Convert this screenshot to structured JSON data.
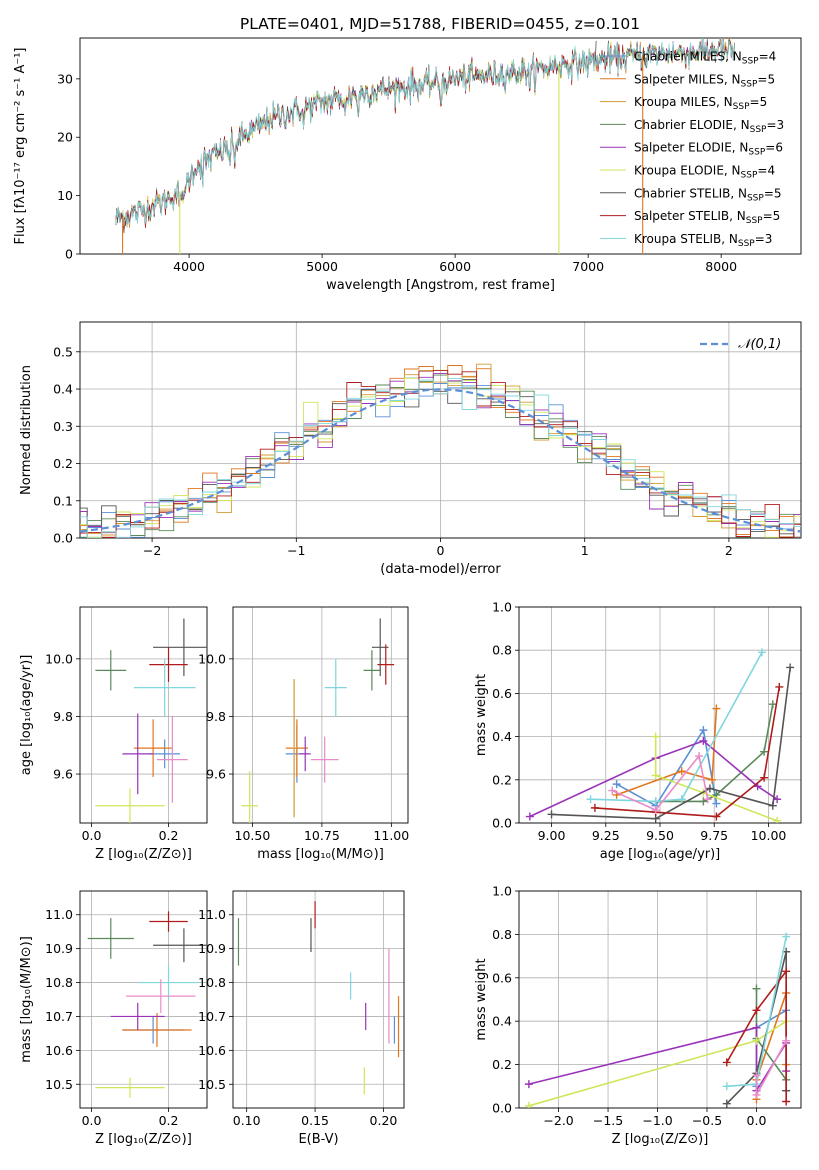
{
  "title": "PLATE=0401, MJD=51788, FIBERID=0455, z=0.101",
  "colors": [
    "#5b8fd6",
    "#e2761f",
    "#d39a36",
    "#5a8a5a",
    "#9a33b8",
    "#cfe65a",
    "#555555",
    "#b01c1c",
    "#7fd6dc",
    "#e88bc8"
  ],
  "chart_data": [
    {
      "id": "spectrum",
      "type": "line",
      "xlabel": "wavelength [Angstrom, rest frame]",
      "ylabel": "Flux [fλ10⁻¹⁷ erg cm⁻² s⁻¹ A⁻¹]",
      "xlim": [
        3180,
        8600
      ],
      "ylim": [
        0,
        37
      ],
      "xticks": [
        4000,
        5000,
        6000,
        7000,
        8000
      ],
      "yticks": [
        0,
        10,
        20,
        30
      ],
      "grid": false,
      "legend_position": "right",
      "legend": [
        "Chabrier MILES, N_SSP=4",
        "Salpeter MILES, N_SSP=5",
        "Kroupa MILES, N_SSP=5",
        "Chabrier ELODIE, N_SSP=3",
        "Salpeter ELODIE, N_SSP=6",
        "Kroupa ELODIE, N_SSP=4",
        "Chabrier STELIB, N_SSP=5",
        "Salpeter STELIB, N_SSP=5",
        "Kroupa STELIB, N_SSP=3"
      ],
      "legend_colors": [
        "#5b8fd6",
        "#e2761f",
        "#d39a36",
        "#5a8a5a",
        "#9a33b8",
        "#cfe65a",
        "#555555",
        "#b01c1c",
        "#7fd6dc"
      ],
      "continuum": [
        [
          3450,
          6
        ],
        [
          3600,
          7
        ],
        [
          3800,
          9
        ],
        [
          3950,
          11
        ],
        [
          4050,
          15
        ],
        [
          4200,
          17
        ],
        [
          4400,
          20
        ],
        [
          4600,
          23
        ],
        [
          4800,
          24.5
        ],
        [
          5000,
          26
        ],
        [
          5200,
          27
        ],
        [
          5400,
          28
        ],
        [
          5600,
          28.5
        ],
        [
          5800,
          29
        ],
        [
          6000,
          30
        ],
        [
          6200,
          30.5
        ],
        [
          6400,
          31
        ],
        [
          6600,
          31.5
        ],
        [
          6800,
          32.5
        ],
        [
          7000,
          33
        ],
        [
          7200,
          33.5
        ],
        [
          7400,
          34
        ],
        [
          7600,
          34.5
        ],
        [
          7800,
          34.5
        ],
        [
          8000,
          35
        ],
        [
          8100,
          34.5
        ]
      ],
      "absorption_lines": [
        3934,
        3968,
        4102,
        4304,
        4341,
        4861,
        5175,
        5270,
        5892,
        6563
      ],
      "dropouts": [
        [
          3500,
          "#e2761f"
        ],
        [
          3930,
          "#cfe65a"
        ],
        [
          6780,
          "#cfe65a"
        ],
        [
          7410,
          "#e2761f"
        ]
      ],
      "spike": [
        7060,
        36.5
      ]
    },
    {
      "id": "residual-histogram",
      "type": "histogram",
      "xlabel": "(data-model)/error",
      "ylabel": "Normed distribution",
      "xlim": [
        -2.5,
        2.5
      ],
      "ylim": [
        0,
        0.58
      ],
      "xticks": [
        -2,
        -1,
        0,
        1,
        2
      ],
      "xtick_labels": [
        "−2",
        "−1",
        "0",
        "1",
        "2"
      ],
      "yticks": [
        0.0,
        0.1,
        0.2,
        0.3,
        0.4,
        0.5
      ],
      "ytick_labels": [
        "0.0",
        "0.1",
        "0.2",
        "0.3",
        "0.4",
        "0.5"
      ],
      "grid": true,
      "legend": "𝒩(0,1)",
      "legend_position": "top-right",
      "curve": {
        "mean": 0,
        "sigma": 1
      },
      "bin_width": 0.1
    },
    {
      "id": "age-vs-Z",
      "type": "errorbar",
      "xlabel": "Z [log₁₀(Z/Z⊙)]",
      "ylabel": "age  [log₁₀(age/yr)]",
      "xlim": [
        -0.03,
        0.3
      ],
      "ylim": [
        9.43,
        10.18
      ],
      "xticks": [
        0.0,
        0.2
      ],
      "xtick_labels": [
        "0.0",
        "0.2"
      ],
      "yticks": [
        9.6,
        9.8,
        10.0
      ],
      "ytick_labels": [
        "9.6",
        "9.8",
        "10.0"
      ],
      "grid": true,
      "points": [
        {
          "x": 0.19,
          "y": 9.67,
          "xerr": 0.04,
          "yerr": 0.05,
          "color": "#5b8fd6"
        },
        {
          "x": 0.16,
          "y": 9.69,
          "xerr": 0.05,
          "yerr": 0.1,
          "color": "#e2761f"
        },
        {
          "x": 0.05,
          "y": 9.96,
          "xerr": 0.04,
          "yerr": 0.07,
          "color": "#5a8a5a"
        },
        {
          "x": 0.12,
          "y": 9.67,
          "xerr": 0.04,
          "yerr": 0.14,
          "color": "#9a33b8"
        },
        {
          "x": 0.1,
          "y": 9.49,
          "xerr": 0.09,
          "yerr": 0.06,
          "color": "#cfe65a"
        },
        {
          "x": 0.24,
          "y": 10.04,
          "xerr": 0.08,
          "yerr": 0.1,
          "color": "#555555"
        },
        {
          "x": 0.2,
          "y": 9.98,
          "xerr": 0.05,
          "yerr": 0.06,
          "color": "#b01c1c"
        },
        {
          "x": 0.19,
          "y": 9.9,
          "xerr": 0.08,
          "yerr": 0.1,
          "color": "#7fd6dc"
        },
        {
          "x": 0.21,
          "y": 9.65,
          "xerr": 0.04,
          "yerr": 0.15,
          "color": "#e88bc8"
        }
      ]
    },
    {
      "id": "age-vs-mass",
      "type": "errorbar",
      "xlabel": "mass [log₁₀(M/M⊙)]",
      "ylabel": "",
      "xlim": [
        10.43,
        11.06
      ],
      "ylim": [
        9.43,
        10.18
      ],
      "xticks": [
        10.5,
        10.75,
        11.0
      ],
      "xtick_labels": [
        "10.50",
        "10.75",
        "11.00"
      ],
      "yticks": [
        9.6,
        9.8,
        10.0
      ],
      "ytick_labels": [
        "9.6",
        "9.8",
        "10.0"
      ],
      "grid": true,
      "points": [
        {
          "x": 10.66,
          "y": 9.67,
          "xerr": 0.04,
          "yerr": 0.1,
          "color": "#5b8fd6"
        },
        {
          "x": 10.66,
          "y": 9.69,
          "xerr": 0.04,
          "yerr": 0.1,
          "color": "#e2761f"
        },
        {
          "x": 10.65,
          "y": 9.69,
          "xerr": 0.01,
          "yerr": 0.24,
          "color": "#d39a36"
        },
        {
          "x": 10.93,
          "y": 9.96,
          "xerr": 0.03,
          "yerr": 0.07,
          "color": "#5a8a5a"
        },
        {
          "x": 10.69,
          "y": 9.67,
          "xerr": 0.02,
          "yerr": 0.06,
          "color": "#9a33b8"
        },
        {
          "x": 10.49,
          "y": 9.49,
          "xerr": 0.03,
          "yerr": 0.12,
          "color": "#cfe65a"
        },
        {
          "x": 10.96,
          "y": 10.04,
          "xerr": 0.03,
          "yerr": 0.1,
          "color": "#555555"
        },
        {
          "x": 10.98,
          "y": 9.98,
          "xerr": 0.03,
          "yerr": 0.07,
          "color": "#b01c1c"
        },
        {
          "x": 10.8,
          "y": 9.9,
          "xerr": 0.04,
          "yerr": 0.1,
          "color": "#7fd6dc"
        },
        {
          "x": 10.76,
          "y": 9.65,
          "xerr": 0.05,
          "yerr": 0.08,
          "color": "#e88bc8"
        }
      ]
    },
    {
      "id": "mass-weight-vs-age",
      "type": "line",
      "xlabel": "age  [log₁₀(age/yr)]",
      "ylabel": "mass weight",
      "xlim": [
        8.85,
        10.15
      ],
      "ylim": [
        0,
        1
      ],
      "xticks": [
        9.0,
        9.25,
        9.5,
        9.75,
        10.0
      ],
      "xtick_labels": [
        "9.00",
        "9.25",
        "9.50",
        "9.75",
        "10.00"
      ],
      "yticks": [
        0,
        0.2,
        0.4,
        0.6,
        0.8,
        1.0
      ],
      "ytick_labels": [
        "0.0",
        "0.2",
        "0.4",
        "0.6",
        "0.8",
        "1.0"
      ],
      "grid": true,
      "series": [
        {
          "color": "#5b8fd6",
          "x": [
            9.3,
            9.48,
            9.7,
            9.76
          ],
          "y": [
            0.18,
            0.08,
            0.43,
            0.09
          ]
        },
        {
          "color": "#e2761f",
          "x": [
            9.3,
            9.6,
            9.74,
            9.76
          ],
          "y": [
            0.13,
            0.24,
            0.2,
            0.53
          ]
        },
        {
          "color": "#5a8a5a",
          "x": [
            9.48,
            9.7,
            9.76,
            9.98,
            10.02
          ],
          "y": [
            0.1,
            0.1,
            0.13,
            0.33,
            0.55
          ]
        },
        {
          "color": "#9a33b8",
          "x": [
            8.9,
            9.48,
            9.7,
            9.95,
            10.04
          ],
          "y": [
            0.03,
            0.3,
            0.38,
            0.17,
            0.11
          ]
        },
        {
          "color": "#cfe65a",
          "x": [
            9.48,
            9.48,
            9.7,
            10.04
          ],
          "y": [
            0.4,
            0.22,
            0.14,
            0.01
          ]
        },
        {
          "color": "#555555",
          "x": [
            9.0,
            9.48,
            9.73,
            10.02,
            10.1
          ],
          "y": [
            0.04,
            0.02,
            0.16,
            0.08,
            0.72
          ]
        },
        {
          "color": "#b01c1c",
          "x": [
            9.2,
            9.48,
            9.76,
            9.98,
            10.05
          ],
          "y": [
            0.07,
            0.05,
            0.03,
            0.21,
            0.63
          ]
        },
        {
          "color": "#7fd6dc",
          "x": [
            9.18,
            9.48,
            9.6,
            9.97
          ],
          "y": [
            0.11,
            0.1,
            0.11,
            0.79
          ]
        },
        {
          "color": "#e88bc8",
          "x": [
            9.28,
            9.48,
            9.68,
            9.72
          ],
          "y": [
            0.15,
            0.06,
            0.31,
            0.11
          ]
        }
      ]
    },
    {
      "id": "mass-vs-Z",
      "type": "errorbar",
      "xlabel": "Z [log₁₀(Z/Z⊙)]",
      "ylabel": "mass [log₁₀(M/M⊙)]",
      "xlim": [
        -0.03,
        0.3
      ],
      "ylim": [
        10.43,
        11.07
      ],
      "xticks": [
        0.0,
        0.2
      ],
      "xtick_labels": [
        "0.0",
        "0.2"
      ],
      "yticks": [
        10.5,
        10.6,
        10.7,
        10.8,
        10.9,
        11.0
      ],
      "ytick_labels": [
        "10.5",
        "10.6",
        "10.7",
        "10.8",
        "10.9",
        "11.0"
      ],
      "grid": true,
      "points": [
        {
          "x": 0.16,
          "y": 10.66,
          "xerr": 0.08,
          "yerr": 0.04,
          "color": "#5b8fd6"
        },
        {
          "x": 0.17,
          "y": 10.66,
          "xerr": 0.09,
          "yerr": 0.05,
          "color": "#e2761f"
        },
        {
          "x": 0.05,
          "y": 10.93,
          "xerr": 0.06,
          "yerr": 0.06,
          "color": "#5a8a5a"
        },
        {
          "x": 0.12,
          "y": 10.7,
          "xerr": 0.07,
          "yerr": 0.04,
          "color": "#9a33b8"
        },
        {
          "x": 0.1,
          "y": 10.49,
          "xerr": 0.09,
          "yerr": 0.03,
          "color": "#cfe65a"
        },
        {
          "x": 0.24,
          "y": 10.91,
          "xerr": 0.08,
          "yerr": 0.05,
          "color": "#555555"
        },
        {
          "x": 0.2,
          "y": 10.98,
          "xerr": 0.05,
          "yerr": 0.03,
          "color": "#b01c1c"
        },
        {
          "x": 0.2,
          "y": 10.8,
          "xerr": 0.08,
          "yerr": 0.05,
          "color": "#7fd6dc"
        },
        {
          "x": 0.18,
          "y": 10.76,
          "xerr": 0.09,
          "yerr": 0.05,
          "color": "#e88bc8"
        }
      ]
    },
    {
      "id": "mass-vs-EBV",
      "type": "errorbar",
      "xlabel": "E(B-V)",
      "ylabel": "",
      "xlim": [
        0.09,
        0.215
      ],
      "ylim": [
        10.43,
        11.07
      ],
      "xticks": [
        0.1,
        0.15,
        0.2
      ],
      "xtick_labels": [
        "0.10",
        "0.15",
        "0.20"
      ],
      "yticks": [
        10.5,
        10.6,
        10.7,
        10.8,
        10.9,
        11.0
      ],
      "ytick_labels": [
        "10.5",
        "10.6",
        "10.7",
        "10.8",
        "10.9",
        "11.0"
      ],
      "grid": true,
      "points": [
        {
          "x": 0.208,
          "y": 10.66,
          "xerr": 0,
          "yerr": 0.04,
          "color": "#5b8fd6"
        },
        {
          "x": 0.211,
          "y": 10.67,
          "xerr": 0,
          "yerr": 0.09,
          "color": "#e2761f"
        },
        {
          "x": 0.094,
          "y": 10.92,
          "xerr": 0,
          "yerr": 0.07,
          "color": "#5a8a5a"
        },
        {
          "x": 0.187,
          "y": 10.7,
          "xerr": 0,
          "yerr": 0.04,
          "color": "#9a33b8"
        },
        {
          "x": 0.186,
          "y": 10.51,
          "xerr": 0,
          "yerr": 0.04,
          "color": "#cfe65a"
        },
        {
          "x": 0.147,
          "y": 10.94,
          "xerr": 0,
          "yerr": 0.05,
          "color": "#555555"
        },
        {
          "x": 0.15,
          "y": 11.0,
          "xerr": 0,
          "yerr": 0.04,
          "color": "#b01c1c"
        },
        {
          "x": 0.176,
          "y": 10.79,
          "xerr": 0,
          "yerr": 0.04,
          "color": "#7fd6dc"
        },
        {
          "x": 0.204,
          "y": 10.76,
          "xerr": 0,
          "yerr": 0.14,
          "color": "#e88bc8"
        }
      ]
    },
    {
      "id": "mass-weight-vs-Z",
      "type": "line",
      "xlabel": "Z [log₁₀(Z/Z⊙)]",
      "ylabel": "mass weight",
      "xlim": [
        -2.4,
        0.45
      ],
      "ylim": [
        0,
        1
      ],
      "xticks": [
        -2.0,
        -1.5,
        -1.0,
        -0.5,
        0.0
      ],
      "xtick_labels": [
        "−2.0",
        "−1.5",
        "−1.0",
        "−0.5",
        "0.0"
      ],
      "yticks": [
        0,
        0.2,
        0.4,
        0.6,
        0.8,
        1.0
      ],
      "ytick_labels": [
        "0.0",
        "0.2",
        "0.4",
        "0.6",
        "0.8",
        "1.0"
      ],
      "grid": true,
      "series": [
        {
          "color": "#5b8fd6",
          "x": [
            0.0,
            0.0,
            0.3,
            0.3
          ],
          "y": [
            0.1,
            0.37,
            0.45,
            0.08
          ]
        },
        {
          "color": "#e2761f",
          "x": [
            0.0,
            0.0,
            0.3,
            0.3
          ],
          "y": [
            0.04,
            0.13,
            0.53,
            0.2
          ]
        },
        {
          "color": "#5a8a5a",
          "x": [
            0.0,
            0.0,
            0.3
          ],
          "y": [
            0.55,
            0.32,
            0.13
          ]
        },
        {
          "color": "#9a33b8",
          "x": [
            -2.3,
            0.0,
            0.0,
            0.3,
            0.3
          ],
          "y": [
            0.11,
            0.37,
            0.08,
            0.3,
            0.17
          ]
        },
        {
          "color": "#cfe65a",
          "x": [
            -2.3,
            0.0,
            0.3
          ],
          "y": [
            0.01,
            0.31,
            0.4
          ]
        },
        {
          "color": "#555555",
          "x": [
            -0.3,
            0.0,
            0.3,
            0.3
          ],
          "y": [
            0.02,
            0.16,
            0.72,
            0.08
          ]
        },
        {
          "color": "#b01c1c",
          "x": [
            -0.3,
            0.0,
            0.3,
            0.3
          ],
          "y": [
            0.21,
            0.45,
            0.63,
            0.03
          ]
        },
        {
          "color": "#7fd6dc",
          "x": [
            -0.3,
            0.0,
            0.3
          ],
          "y": [
            0.1,
            0.11,
            0.79
          ]
        },
        {
          "color": "#e88bc8",
          "x": [
            0.0,
            0.0,
            0.3
          ],
          "y": [
            0.15,
            0.06,
            0.31
          ]
        }
      ]
    }
  ]
}
